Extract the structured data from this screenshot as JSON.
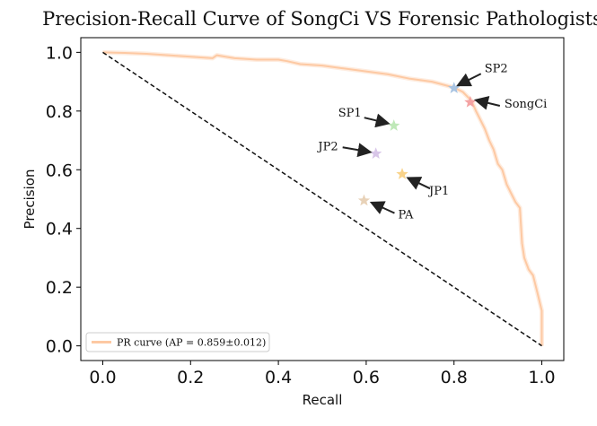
{
  "chart_data": {
    "type": "line",
    "title": "Precision-Recall Curve of SongCi VS Forensic Pathologists",
    "xlabel": "Recall",
    "ylabel": "Precision",
    "xlim": [
      -0.05,
      1.05
    ],
    "ylim": [
      -0.05,
      1.05
    ],
    "xticks": [
      0.0,
      0.2,
      0.4,
      0.6,
      0.8,
      1.0
    ],
    "yticks": [
      0.0,
      0.2,
      0.4,
      0.6,
      0.8,
      1.0
    ],
    "xtick_labels": [
      "0.0",
      "0.2",
      "0.4",
      "0.6",
      "0.8",
      "1.0"
    ],
    "ytick_labels": [
      "0.0",
      "0.2",
      "0.4",
      "0.6",
      "0.8",
      "1.0"
    ],
    "grid": false,
    "legend": {
      "position": "lower-left",
      "entries": [
        "PR curve (AP = 0.859±0.012)"
      ]
    },
    "series": [
      {
        "name": "PR curve (AP = 0.859±0.012)",
        "color": "#fdc9a3",
        "x": [
          0.0,
          0.05,
          0.1,
          0.15,
          0.2,
          0.25,
          0.26,
          0.3,
          0.35,
          0.4,
          0.42,
          0.45,
          0.5,
          0.55,
          0.6,
          0.65,
          0.7,
          0.75,
          0.8,
          0.82,
          0.84,
          0.85,
          0.87,
          0.88,
          0.89,
          0.9,
          0.91,
          0.92,
          0.93,
          0.94,
          0.95,
          0.955,
          0.96,
          0.97,
          0.98,
          0.99,
          1.0,
          1.0
        ],
        "y": [
          1.0,
          0.998,
          0.995,
          0.99,
          0.985,
          0.98,
          0.99,
          0.98,
          0.975,
          0.975,
          0.97,
          0.96,
          0.955,
          0.945,
          0.935,
          0.925,
          0.91,
          0.9,
          0.88,
          0.865,
          0.835,
          0.8,
          0.74,
          0.7,
          0.67,
          0.62,
          0.6,
          0.55,
          0.52,
          0.49,
          0.47,
          0.35,
          0.3,
          0.26,
          0.24,
          0.18,
          0.12,
          0.0
        ]
      },
      {
        "name": "",
        "style": "dashed",
        "color": "#111111",
        "x": [
          0.0,
          1.0
        ],
        "y": [
          1.0,
          0.0
        ]
      }
    ],
    "points": [
      {
        "label": "SP2",
        "x": 0.8,
        "y": 0.878,
        "color": "#a9c4e2"
      },
      {
        "label": "SongCi",
        "x": 0.837,
        "y": 0.83,
        "color": "#f4a3a3"
      },
      {
        "label": "SP1",
        "x": 0.663,
        "y": 0.75,
        "color": "#bfe8b8"
      },
      {
        "label": "JP2",
        "x": 0.622,
        "y": 0.655,
        "color": "#d8c6e8"
      },
      {
        "label": "JP1",
        "x": 0.682,
        "y": 0.585,
        "color": "#f9d38a"
      },
      {
        "label": "PA",
        "x": 0.595,
        "y": 0.495,
        "color": "#e8d2b8"
      }
    ],
    "annotations": [
      {
        "text": "SP2",
        "target": "SP2"
      },
      {
        "text": "SongCi",
        "target": "SongCi"
      },
      {
        "text": "SP1",
        "target": "SP1"
      },
      {
        "text": "JP2",
        "target": "JP2"
      },
      {
        "text": "JP1",
        "target": "JP1"
      },
      {
        "text": "PA",
        "target": "PA"
      }
    ]
  }
}
